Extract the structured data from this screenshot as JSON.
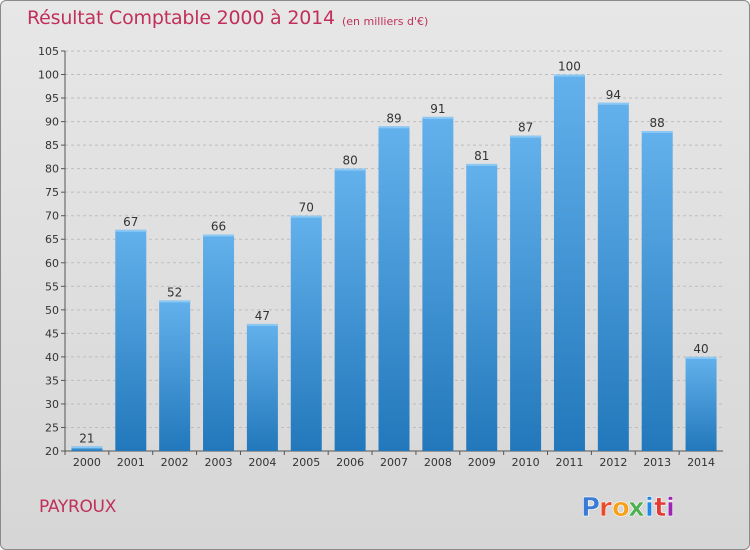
{
  "header": {
    "title": "Résultat Comptable 2000 à 2014",
    "subtitle": "(en milliers d'€)"
  },
  "footer": {
    "commune": "PAYROUX",
    "logo_text": "Proxiti",
    "logo_colors": [
      "#3a7bd5",
      "#e94b2a",
      "#f7a11a",
      "#4caf50",
      "#1e88e5",
      "#e53935",
      "#9c27b0"
    ]
  },
  "colors": {
    "title": "#c0305a",
    "bar_light": "#63b1ec",
    "bar_dark": "#2278bb",
    "grid": "#bdbdbd"
  },
  "chart_data": {
    "type": "bar",
    "title": "Résultat Comptable 2000 à 2014",
    "subtitle": "(en milliers d'€)",
    "categories": [
      "2000",
      "2001",
      "2002",
      "2003",
      "2004",
      "2005",
      "2006",
      "2007",
      "2008",
      "2009",
      "2010",
      "2011",
      "2012",
      "2013",
      "2014"
    ],
    "values": [
      21,
      67,
      52,
      66,
      47,
      70,
      80,
      89,
      91,
      81,
      87,
      100,
      94,
      88,
      40
    ],
    "ylim": [
      20,
      105
    ],
    "yticks": [
      20,
      25,
      30,
      35,
      40,
      45,
      50,
      55,
      60,
      65,
      70,
      75,
      80,
      85,
      90,
      95,
      100,
      105
    ],
    "grid": true,
    "xlabel": "",
    "ylabel": ""
  }
}
